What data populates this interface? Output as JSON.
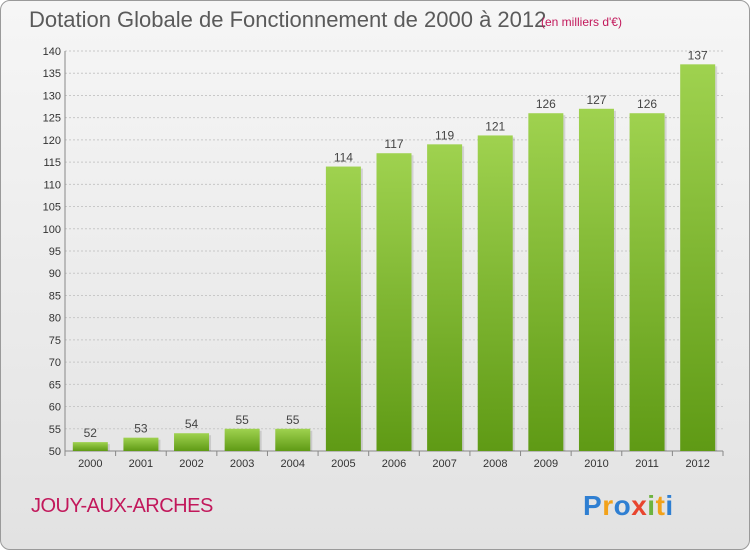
{
  "header": {
    "title": "Dotation Globale de Fonctionnement de 2000 à 2012",
    "unit": "(en milliers d'€)"
  },
  "footer": {
    "commune": "JOUY-AUX-ARCHES",
    "logo_text": "Proxiti"
  },
  "colors": {
    "bar_top": "#9fd24f",
    "bar_bottom": "#5f9a15",
    "title": "#5a5a5a",
    "accent": "#c2185b"
  },
  "chart_data": {
    "type": "bar",
    "title": "Dotation Globale de Fonctionnement de 2000 à 2012",
    "subtitle": "(en milliers d'€)",
    "categories": [
      "2000",
      "2001",
      "2002",
      "2003",
      "2004",
      "2005",
      "2006",
      "2007",
      "2008",
      "2009",
      "2010",
      "2011",
      "2012"
    ],
    "values": [
      52,
      53,
      54,
      55,
      55,
      114,
      117,
      119,
      121,
      126,
      127,
      126,
      137
    ],
    "ylim": [
      50,
      140
    ],
    "yticks": [
      50,
      55,
      60,
      65,
      70,
      75,
      80,
      85,
      90,
      95,
      100,
      105,
      110,
      115,
      120,
      125,
      130,
      135,
      140
    ],
    "grid": true,
    "data_labels": true
  }
}
